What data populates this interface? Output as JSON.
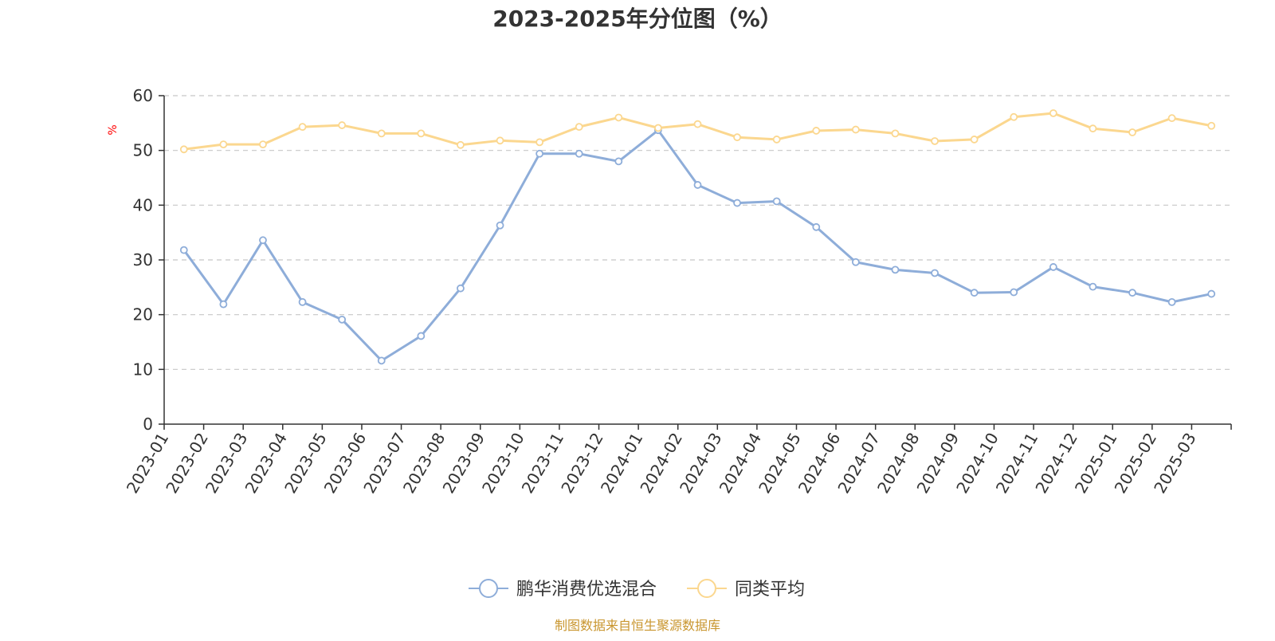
{
  "chart_data": {
    "type": "line",
    "title": "2023-2025年分位图（%）",
    "ylabel": "%",
    "xlabel": "",
    "ylim": [
      0,
      60
    ],
    "yticks": [
      0,
      10,
      20,
      30,
      40,
      50,
      60
    ],
    "grid": true,
    "legend_position": "bottom-center",
    "categories": [
      "2023-01",
      "2023-02",
      "2023-03",
      "2023-04",
      "2023-05",
      "2023-06",
      "2023-07",
      "2023-08",
      "2023-09",
      "2023-10",
      "2023-11",
      "2023-12",
      "2024-01",
      "2024-02",
      "2024-03",
      "2024-04",
      "2024-05",
      "2024-06",
      "2024-07",
      "2024-08",
      "2024-09",
      "2024-10",
      "2024-11",
      "2024-12",
      "2025-01",
      "2025-02",
      "2025-03"
    ],
    "series": [
      {
        "name": "鹏华消费优选混合",
        "color": "#8eadd9",
        "values": [
          31.8,
          21.9,
          33.6,
          22.3,
          19.1,
          11.6,
          16.1,
          24.8,
          36.3,
          49.4,
          49.4,
          48.0,
          53.7,
          43.7,
          40.4,
          40.7,
          36.0,
          29.6,
          28.2,
          27.6,
          24.0,
          24.1,
          28.7,
          25.1,
          24.0,
          22.3,
          23.8
        ]
      },
      {
        "name": "同类平均",
        "color": "#fbd78f",
        "values": [
          50.2,
          51.1,
          51.1,
          54.3,
          54.6,
          53.1,
          53.1,
          51.0,
          51.8,
          51.5,
          54.3,
          56.0,
          54.1,
          54.8,
          52.4,
          52.0,
          53.6,
          53.8,
          53.1,
          51.7,
          52.0,
          56.1,
          56.8,
          54.0,
          53.3,
          55.9,
          54.5
        ]
      }
    ],
    "source": "制图数据来自恒生聚源数据库"
  }
}
